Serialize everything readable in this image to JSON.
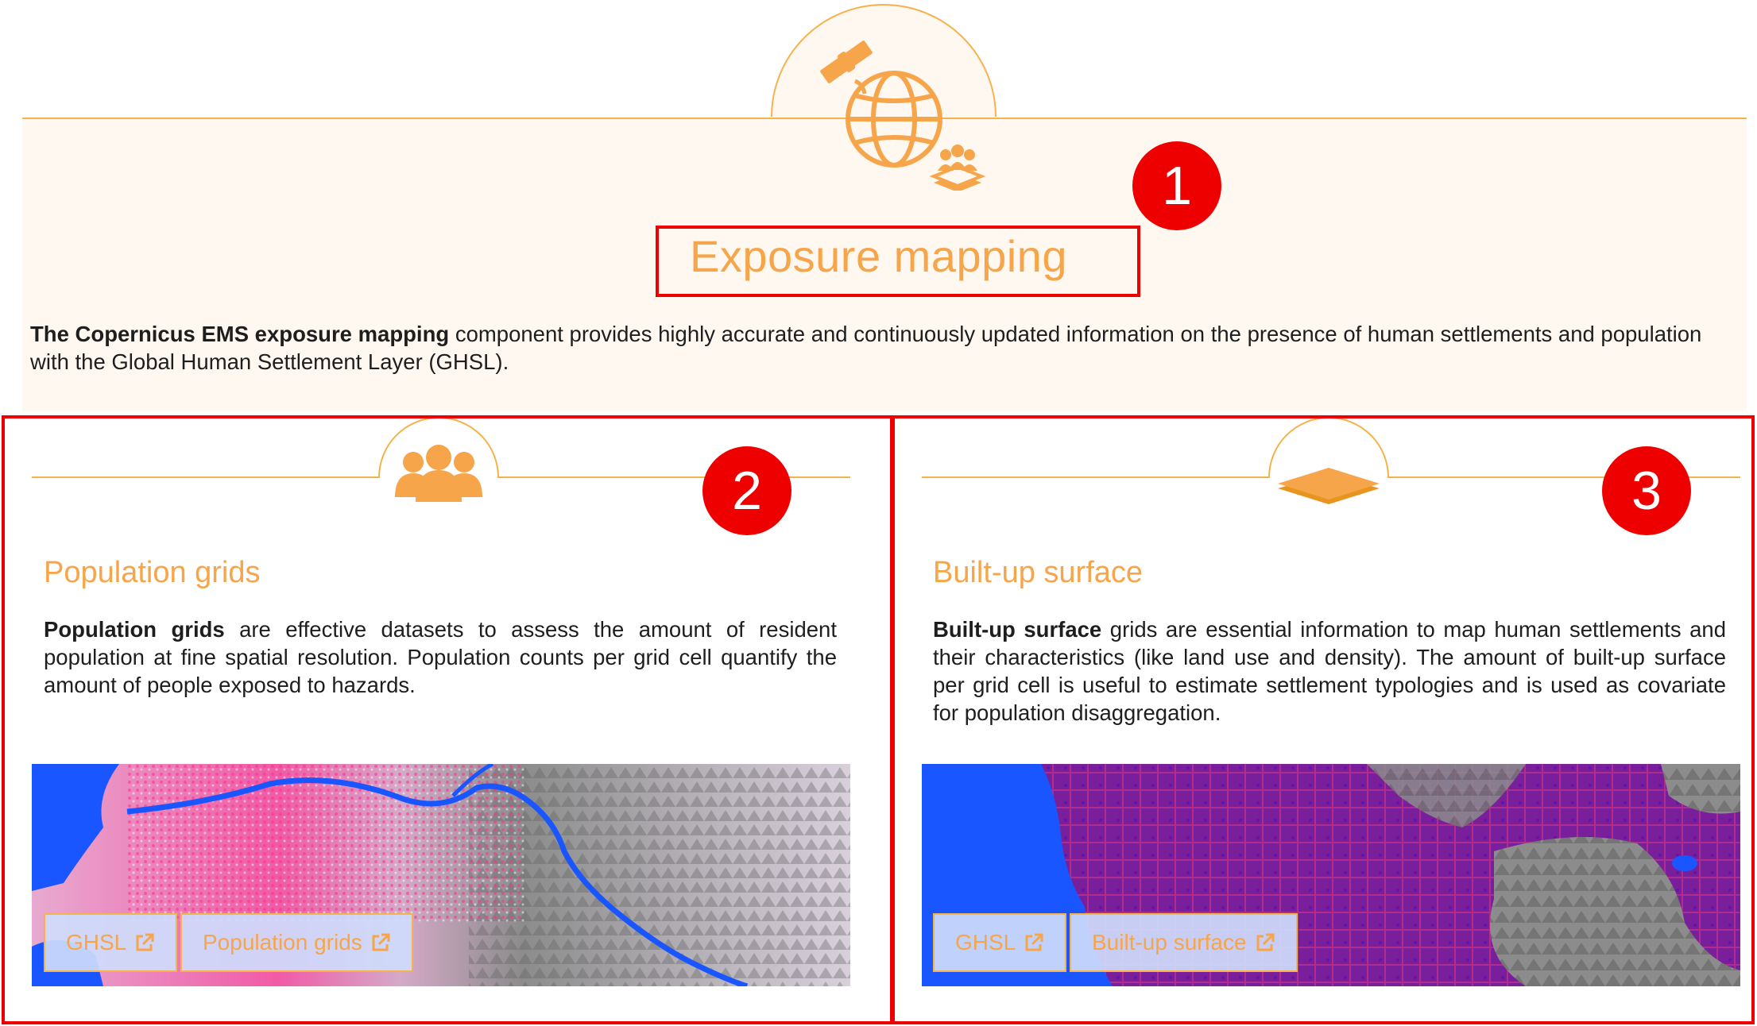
{
  "section": {
    "title": "Exposure mapping",
    "desc_bold": "The Copernicus EMS exposure mapping",
    "desc_rest": " component provides highly accurate and continuously updated information on the presence of human settlements and population with the Global Human Settlement Layer (GHSL)."
  },
  "cards": [
    {
      "title": "Population grids",
      "text_bold": "Population grids",
      "text_rest": " are effective datasets to assess the amount of resident population at fine spatial resolution. Population counts per grid cell quantify the amount of people exposed to hazards.",
      "buttons": [
        "GHSL",
        "Population grids"
      ]
    },
    {
      "title": "Built-up surface",
      "text_bold": "Built-up surface",
      "text_rest": " grids are essential information to map human settlements and their characteristics (like land use and density). The amount of built-up surface per grid cell is useful to estimate settlement typologies and is used as covariate for population disaggregation.",
      "buttons": [
        "GHSL",
        "Built-up surface"
      ]
    }
  ],
  "annotations": [
    "1",
    "2",
    "3"
  ],
  "colors": {
    "accent": "#f6a54a",
    "annotation": "#ee0000",
    "panel_bg": "#fff8f1",
    "water": "#1a56ff"
  },
  "icons": {
    "hero": "satellite-globe-population-icon",
    "card1": "people-group-icon",
    "card2": "layer-stack-icon",
    "button": "external-link-icon"
  }
}
